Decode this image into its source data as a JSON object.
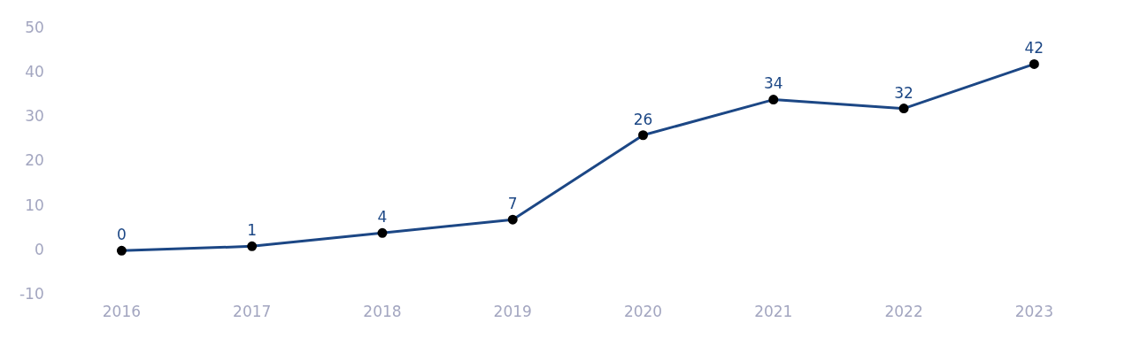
{
  "chart_data": {
    "type": "line",
    "categories": [
      "2016",
      "2017",
      "2018",
      "2019",
      "2020",
      "2021",
      "2022",
      "2023"
    ],
    "series": [
      {
        "color": "#1c4785",
        "values": [
          0,
          1,
          4,
          7,
          26,
          34,
          32,
          42
        ]
      }
    ],
    "ylim": [
      -10,
      50
    ],
    "yticks": [
      -10,
      0,
      10,
      20,
      30,
      40,
      50
    ],
    "grid": false,
    "legend": false,
    "marker": "circle",
    "line_style": "solid",
    "data_labels": true
  }
}
